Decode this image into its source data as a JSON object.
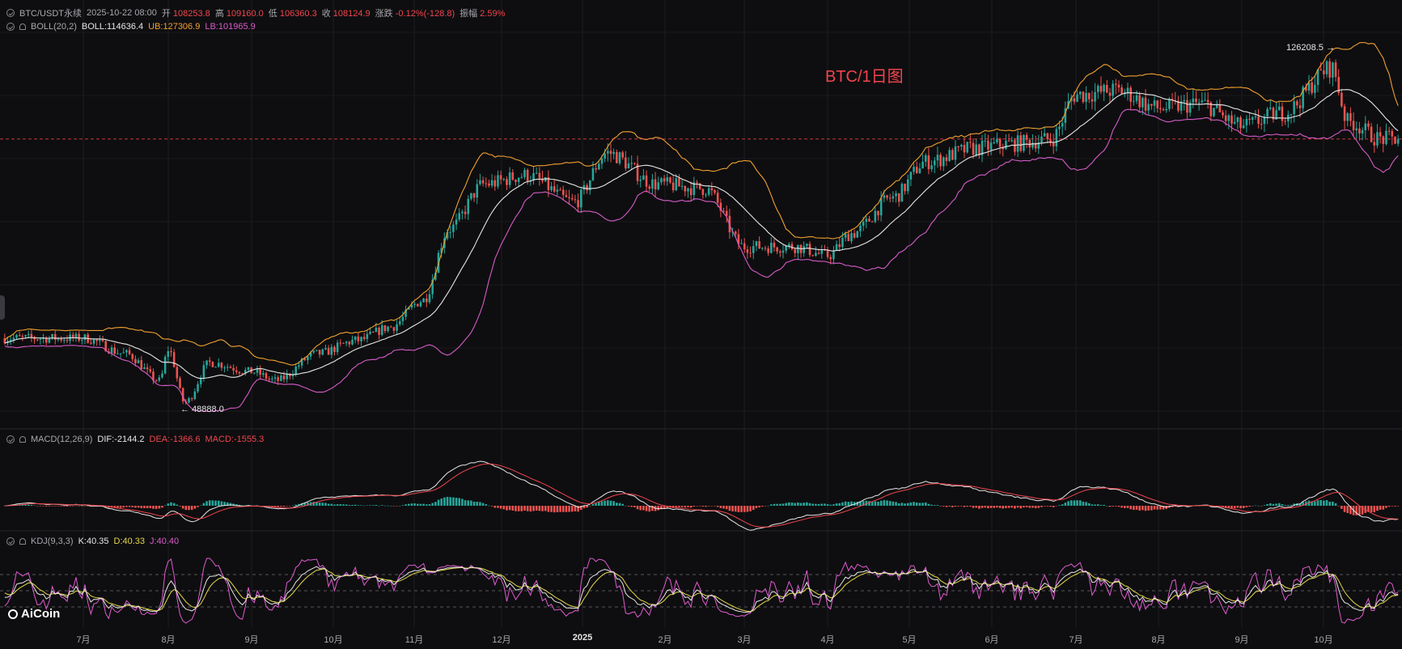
{
  "header": {
    "symbol": "BTC/USDT永续",
    "datetime": "2025-10-22 08:00",
    "open_label": "开",
    "open": "108253.8",
    "high_label": "高",
    "high": "109160.0",
    "low_label": "低",
    "low": "106360.3",
    "close_label": "收",
    "close": "108124.9",
    "change_label": "涨跌",
    "change": "-0.12%(-128.8)",
    "amplitude_label": "振幅",
    "amplitude": "2.59%"
  },
  "boll": {
    "name": "BOLL(20,2)",
    "boll": "BOLL:114636.4",
    "ub": "UB:127306.9",
    "lb": "LB:101965.9"
  },
  "macd": {
    "name": "MACD(12,26,9)",
    "dif": "DIF:-2144.2",
    "dea": "DEA:-1366.6",
    "macd": "MACD:-1555.3"
  },
  "kdj": {
    "name": "KDJ(9,3,3)",
    "k": "K:40.35",
    "d": "D:40.33",
    "j": "J:40.40"
  },
  "watermark": "BTC/1日图",
  "logo": "AiCoin",
  "annotations": {
    "max": "126208.5",
    "min": "48888.0"
  },
  "colors": {
    "up": "#26a69a",
    "down": "#ef5350",
    "boll_mid": "#e6e6e6",
    "boll_ub": "#f0a030",
    "boll_lb": "#d65cc8",
    "dif": "#e6e6e6",
    "dea": "#f0454d",
    "k": "#e6e6e6",
    "d": "#e6d84a",
    "j": "#e05bd0",
    "last_price_line": "#f0454d"
  },
  "chart_data": {
    "type": "candlestick",
    "x_labels": [
      "7月",
      "8月",
      "9月",
      "10月",
      "11月",
      "12月",
      "2025",
      "2月",
      "3月",
      "4月",
      "5月",
      "6月",
      "7月",
      "8月",
      "9月",
      "10月"
    ],
    "price_keypoints": [
      {
        "month_index": 0,
        "price": 63500
      },
      {
        "month_index": 0.5,
        "price": 60000
      },
      {
        "month_index": 0.9,
        "price": 54000
      },
      {
        "month_index": 1.0,
        "price": 61000
      },
      {
        "month_index": 1.2,
        "price": 49000
      },
      {
        "month_index": 1.5,
        "price": 58000
      },
      {
        "month_index": 2.0,
        "price": 56000
      },
      {
        "month_index": 2.3,
        "price": 54000
      },
      {
        "month_index": 2.8,
        "price": 60000
      },
      {
        "month_index": 3.3,
        "price": 63000
      },
      {
        "month_index": 3.7,
        "price": 66000
      },
      {
        "month_index": 4.1,
        "price": 72000
      },
      {
        "month_index": 4.4,
        "price": 88000
      },
      {
        "month_index": 4.8,
        "price": 98000
      },
      {
        "month_index": 5.3,
        "price": 100000
      },
      {
        "month_index": 5.9,
        "price": 94000
      },
      {
        "month_index": 6.3,
        "price": 105000
      },
      {
        "month_index": 6.9,
        "price": 98000
      },
      {
        "month_index": 7.5,
        "price": 97000
      },
      {
        "month_index": 8.0,
        "price": 84000
      },
      {
        "month_index": 8.6,
        "price": 84000
      },
      {
        "month_index": 9.0,
        "price": 82000
      },
      {
        "month_index": 9.3,
        "price": 87000
      },
      {
        "month_index": 9.8,
        "price": 95000
      },
      {
        "month_index": 10.2,
        "price": 103000
      },
      {
        "month_index": 10.8,
        "price": 106000
      },
      {
        "month_index": 11.2,
        "price": 107000
      },
      {
        "month_index": 11.7,
        "price": 108000
      },
      {
        "month_index": 12.0,
        "price": 118000
      },
      {
        "month_index": 12.5,
        "price": 119000
      },
      {
        "month_index": 13.0,
        "price": 115000
      },
      {
        "month_index": 13.5,
        "price": 116000
      },
      {
        "month_index": 14.0,
        "price": 111000
      },
      {
        "month_index": 14.5,
        "price": 114000
      },
      {
        "month_index": 15.1,
        "price": 124000
      },
      {
        "month_index": 15.3,
        "price": 112000
      },
      {
        "month_index": 15.7,
        "price": 108125
      }
    ],
    "price_max": 126208.5,
    "price_min": 48888.0,
    "last_close": 108124.9,
    "indicators": [
      "BOLL(20,2)",
      "MACD(12,26,9)",
      "KDJ(9,3,3)"
    ]
  }
}
